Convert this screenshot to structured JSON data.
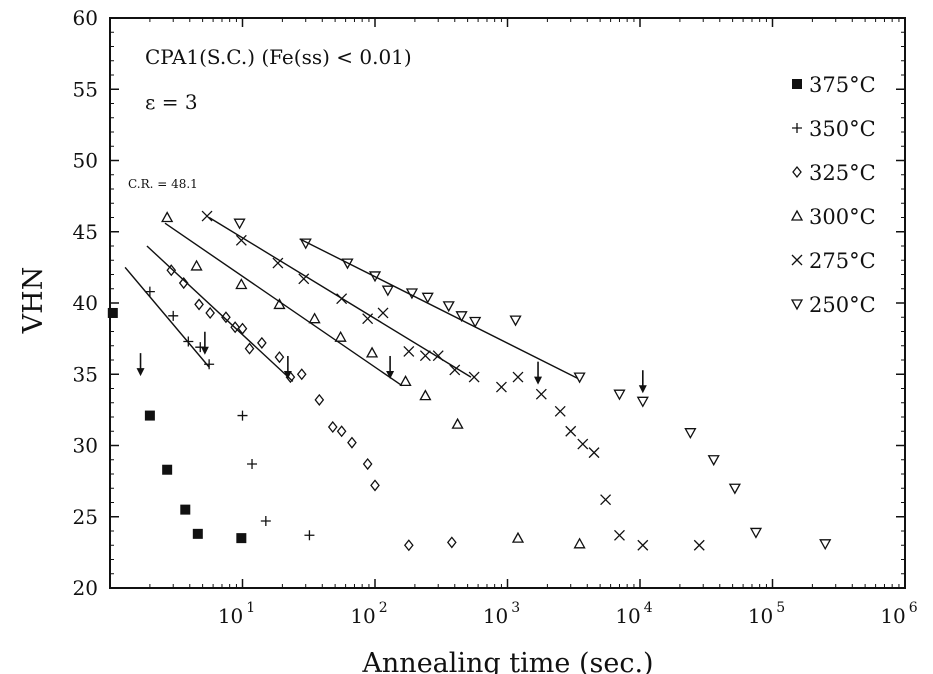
{
  "chart_data": {
    "type": "scatter",
    "xscale": "log",
    "xlim": [
      1,
      1000000
    ],
    "ylim": [
      20,
      60
    ],
    "xlabel": "Annealing time (sec.)",
    "ylabel": "VHN",
    "xticks": [
      {
        "value": 10,
        "base": "10",
        "exp": "1"
      },
      {
        "value": 100,
        "base": "10",
        "exp": "2"
      },
      {
        "value": 1000,
        "base": "10",
        "exp": "3"
      },
      {
        "value": 10000,
        "base": "10",
        "exp": "4"
      },
      {
        "value": 100000,
        "base": "10",
        "exp": "5"
      },
      {
        "value": 1000000,
        "base": "10",
        "exp": "6"
      }
    ],
    "yticks": [
      "20",
      "25",
      "30",
      "35",
      "40",
      "45",
      "50",
      "55",
      "60"
    ],
    "annotations": {
      "line1": "CPA1(S.C.) (Fe(ss) < 0.01)",
      "line2": "ε = 3",
      "cr": "C.R. = 48.1"
    },
    "legend_position": "right",
    "series": [
      {
        "name": "375°C",
        "marker": "square",
        "points": [
          [
            1.05,
            39.3
          ],
          [
            2.0,
            32.1
          ],
          [
            2.7,
            28.3
          ],
          [
            3.7,
            25.5
          ],
          [
            4.6,
            23.8
          ],
          [
            9.8,
            23.5
          ]
        ],
        "fit": null,
        "arrow": [
          1.7,
          35.5
        ]
      },
      {
        "name": "350°C",
        "marker": "plus",
        "points": [
          [
            2.0,
            40.8
          ],
          [
            3.0,
            39.1
          ],
          [
            3.9,
            37.3
          ],
          [
            4.8,
            36.9
          ],
          [
            5.6,
            35.7
          ],
          [
            10.0,
            32.1
          ],
          [
            11.8,
            28.7
          ],
          [
            15.0,
            24.7
          ],
          [
            32.0,
            23.7
          ]
        ],
        "fit": [
          [
            1.3,
            42.5
          ],
          [
            5.6,
            35.5
          ]
        ],
        "arrow": [
          5.2,
          37.0
        ]
      },
      {
        "name": "325°C",
        "marker": "diamond",
        "points": [
          [
            2.9,
            42.3
          ],
          [
            3.6,
            41.4
          ],
          [
            4.7,
            39.9
          ],
          [
            5.7,
            39.3
          ],
          [
            7.5,
            39.0
          ],
          [
            8.8,
            38.3
          ],
          [
            10.0,
            38.2
          ],
          [
            11.3,
            36.8
          ],
          [
            14.0,
            37.2
          ],
          [
            19.0,
            36.2
          ],
          [
            23.0,
            34.8
          ],
          [
            28.0,
            35.0
          ],
          [
            38.0,
            33.2
          ],
          [
            48.0,
            31.3
          ],
          [
            56.0,
            31.0
          ],
          [
            67.0,
            30.2
          ],
          [
            88.0,
            28.7
          ],
          [
            100.0,
            27.2
          ],
          [
            180.0,
            23.0
          ],
          [
            380.0,
            23.2
          ]
        ],
        "fit": [
          [
            1.9,
            44.0
          ],
          [
            24.0,
            34.5
          ]
        ],
        "arrow": [
          22.0,
          35.3
        ]
      },
      {
        "name": "300°C",
        "marker": "triangle-up",
        "points": [
          [
            2.7,
            46.0
          ],
          [
            4.5,
            42.6
          ],
          [
            9.8,
            41.3
          ],
          [
            19.0,
            39.9
          ],
          [
            35.0,
            38.9
          ],
          [
            55.0,
            37.6
          ],
          [
            95.0,
            36.5
          ],
          [
            170.0,
            34.5
          ],
          [
            240.0,
            33.5
          ],
          [
            420.0,
            31.5
          ],
          [
            1200.0,
            23.5
          ],
          [
            3500.0,
            23.1
          ]
        ],
        "fit": [
          [
            2.6,
            45.6
          ],
          [
            160.0,
            34.2
          ]
        ],
        "arrow": [
          130.0,
          35.3
        ]
      },
      {
        "name": "275°C",
        "marker": "cross",
        "points": [
          [
            5.4,
            46.1
          ],
          [
            9.8,
            44.4
          ],
          [
            18.5,
            42.8
          ],
          [
            29.0,
            41.7
          ],
          [
            56.0,
            40.3
          ],
          [
            88.0,
            38.9
          ],
          [
            115.0,
            39.3
          ],
          [
            180.0,
            36.6
          ],
          [
            240.0,
            36.3
          ],
          [
            300.0,
            36.3
          ],
          [
            400.0,
            35.3
          ],
          [
            560.0,
            34.8
          ],
          [
            900.0,
            34.1
          ],
          [
            1200.0,
            34.8
          ],
          [
            1800.0,
            33.6
          ],
          [
            2500.0,
            32.4
          ],
          [
            3000.0,
            31.0
          ],
          [
            3700.0,
            30.1
          ],
          [
            4500.0,
            29.5
          ],
          [
            5500.0,
            26.2
          ],
          [
            7000.0,
            23.7
          ],
          [
            10500.0,
            23.0
          ],
          [
            28000.0,
            23.0
          ]
        ],
        "fit": [
          [
            5.6,
            46.0
          ],
          [
            530.0,
            34.8
          ]
        ],
        "arrow": [
          1700.0,
          34.9
        ]
      },
      {
        "name": "250°C",
        "marker": "triangle-down",
        "points": [
          [
            9.5,
            45.6
          ],
          [
            30.0,
            44.2
          ],
          [
            62.0,
            42.8
          ],
          [
            100.0,
            41.9
          ],
          [
            125.0,
            40.9
          ],
          [
            190.0,
            40.7
          ],
          [
            250.0,
            40.4
          ],
          [
            360.0,
            39.8
          ],
          [
            450.0,
            39.1
          ],
          [
            570.0,
            38.7
          ],
          [
            1150.0,
            38.8
          ],
          [
            3500.0,
            34.8
          ],
          [
            7000.0,
            33.6
          ],
          [
            10500.0,
            33.1
          ],
          [
            24000.0,
            30.9
          ],
          [
            36000.0,
            29.0
          ],
          [
            52000.0,
            27.0
          ],
          [
            75000.0,
            23.9
          ],
          [
            250000.0,
            23.1
          ]
        ],
        "fit": [
          [
            27.0,
            44.5
          ],
          [
            3400.0,
            34.7
          ]
        ],
        "arrow": [
          10500.0,
          34.3
        ]
      }
    ]
  }
}
